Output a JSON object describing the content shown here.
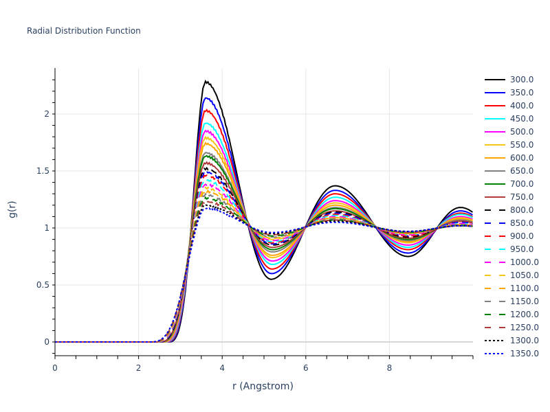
{
  "chart_data": {
    "type": "line",
    "title": "Radial Distribution Function",
    "xlabel": "r (Angstrom)",
    "ylabel": "g(r)",
    "xlim": [
      0,
      10
    ],
    "ylim": [
      -0.12,
      2.38
    ],
    "xticks": [
      0,
      2,
      4,
      6,
      8
    ],
    "yticks": [
      0,
      0.5,
      1,
      1.5,
      2
    ],
    "yticklabels": [
      "0",
      "0.5",
      "1",
      "1.5",
      "2"
    ],
    "grid": true,
    "legend_position": "right",
    "series": [
      {
        "name": "300.0",
        "color": "#000000",
        "dash": "solid",
        "first_peak": [
          3.6,
          2.28
        ],
        "first_min": [
          5.17,
          0.55
        ],
        "second_peak": [
          6.7,
          1.37
        ],
        "second_min": [
          8.45,
          0.75
        ],
        "third_peak": [
          9.7,
          1.18
        ],
        "onset_r": 2.7
      },
      {
        "name": "350.0",
        "color": "#0000ff",
        "dash": "solid",
        "first_peak": [
          3.6,
          2.14
        ],
        "first_min": [
          5.18,
          0.6
        ],
        "second_peak": [
          6.7,
          1.33
        ],
        "second_min": [
          8.45,
          0.78
        ],
        "third_peak": [
          9.7,
          1.15
        ],
        "onset_r": 2.67
      },
      {
        "name": "400.0",
        "color": "#ff0000",
        "dash": "solid",
        "first_peak": [
          3.6,
          2.03
        ],
        "first_min": [
          5.19,
          0.64
        ],
        "second_peak": [
          6.7,
          1.3
        ],
        "second_min": [
          8.45,
          0.81
        ],
        "third_peak": [
          9.7,
          1.13
        ],
        "onset_r": 2.64
      },
      {
        "name": "450.0",
        "color": "#00ffff",
        "dash": "solid",
        "first_peak": [
          3.6,
          1.92
        ],
        "first_min": [
          5.2,
          0.68
        ],
        "second_peak": [
          6.7,
          1.27
        ],
        "second_min": [
          8.45,
          0.83
        ],
        "third_peak": [
          9.7,
          1.12
        ],
        "onset_r": 2.61
      },
      {
        "name": "500.0",
        "color": "#ff00ff",
        "dash": "solid",
        "first_peak": [
          3.6,
          1.85
        ],
        "first_min": [
          5.2,
          0.71
        ],
        "second_peak": [
          6.7,
          1.24
        ],
        "second_min": [
          8.45,
          0.85
        ],
        "third_peak": [
          9.7,
          1.1
        ],
        "onset_r": 2.58
      },
      {
        "name": "550.0",
        "color": "#f5c518",
        "dash": "solid",
        "first_peak": [
          3.6,
          1.79
        ],
        "first_min": [
          5.2,
          0.74
        ],
        "second_peak": [
          6.7,
          1.22
        ],
        "second_min": [
          8.45,
          0.87
        ],
        "third_peak": [
          9.7,
          1.09
        ],
        "onset_r": 2.55
      },
      {
        "name": "600.0",
        "color": "#ffa500",
        "dash": "solid",
        "first_peak": [
          3.6,
          1.74
        ],
        "first_min": [
          5.2,
          0.76
        ],
        "second_peak": [
          6.7,
          1.2
        ],
        "second_min": [
          8.45,
          0.88
        ],
        "third_peak": [
          9.7,
          1.08
        ],
        "onset_r": 2.53
      },
      {
        "name": "650.0",
        "color": "#808080",
        "dash": "solid",
        "first_peak": [
          3.6,
          1.66
        ],
        "first_min": [
          5.2,
          0.79
        ],
        "second_peak": [
          6.7,
          1.18
        ],
        "second_min": [
          8.45,
          0.89
        ],
        "third_peak": [
          9.7,
          1.07
        ],
        "onset_r": 2.5
      },
      {
        "name": "700.0",
        "color": "#008000",
        "dash": "solid",
        "first_peak": [
          3.6,
          1.63
        ],
        "first_min": [
          5.2,
          0.81
        ],
        "second_peak": [
          6.7,
          1.17
        ],
        "second_min": [
          8.45,
          0.9
        ],
        "third_peak": [
          9.7,
          1.06
        ],
        "onset_r": 2.48
      },
      {
        "name": "750.0",
        "color": "#b03a3a",
        "dash": "solid",
        "first_peak": [
          3.6,
          1.57
        ],
        "first_min": [
          5.2,
          0.83
        ],
        "second_peak": [
          6.7,
          1.15
        ],
        "second_min": [
          8.45,
          0.91
        ],
        "third_peak": [
          9.7,
          1.06
        ],
        "onset_r": 2.46
      },
      {
        "name": "800.0",
        "color": "#000000",
        "dash": "dash",
        "first_peak": [
          3.6,
          1.52
        ],
        "first_min": [
          5.2,
          0.85
        ],
        "second_peak": [
          6.7,
          1.14
        ],
        "second_min": [
          8.45,
          0.92
        ],
        "third_peak": [
          9.7,
          1.05
        ],
        "onset_r": 2.44
      },
      {
        "name": "850.0",
        "color": "#0000ff",
        "dash": "dash",
        "first_peak": [
          3.6,
          1.49
        ],
        "first_min": [
          5.2,
          0.86
        ],
        "second_peak": [
          6.7,
          1.13
        ],
        "second_min": [
          8.45,
          0.93
        ],
        "third_peak": [
          9.7,
          1.05
        ],
        "onset_r": 2.42
      },
      {
        "name": "900.0",
        "color": "#ff0000",
        "dash": "dash",
        "first_peak": [
          3.6,
          1.46
        ],
        "first_min": [
          5.2,
          0.87
        ],
        "second_peak": [
          6.7,
          1.12
        ],
        "second_min": [
          8.45,
          0.93
        ],
        "third_peak": [
          9.7,
          1.04
        ],
        "onset_r": 2.4
      },
      {
        "name": "950.0",
        "color": "#00ffff",
        "dash": "dash",
        "first_peak": [
          3.6,
          1.42
        ],
        "first_min": [
          5.2,
          0.88
        ],
        "second_peak": [
          6.7,
          1.11
        ],
        "second_min": [
          8.45,
          0.94
        ],
        "third_peak": [
          9.7,
          1.04
        ],
        "onset_r": 2.38
      },
      {
        "name": "1000.0",
        "color": "#ff00ff",
        "dash": "dash",
        "first_peak": [
          3.6,
          1.38
        ],
        "first_min": [
          5.2,
          0.89
        ],
        "second_peak": [
          6.7,
          1.1
        ],
        "second_min": [
          8.45,
          0.94
        ],
        "third_peak": [
          9.7,
          1.04
        ],
        "onset_r": 2.36
      },
      {
        "name": "1050.0",
        "color": "#f5c518",
        "dash": "dash",
        "first_peak": [
          3.6,
          1.35
        ],
        "first_min": [
          5.2,
          0.9
        ],
        "second_peak": [
          6.7,
          1.09
        ],
        "second_min": [
          8.45,
          0.95
        ],
        "third_peak": [
          9.7,
          1.03
        ],
        "onset_r": 2.34
      },
      {
        "name": "1100.0",
        "color": "#ffa500",
        "dash": "dash",
        "first_peak": [
          3.6,
          1.32
        ],
        "first_min": [
          5.2,
          0.91
        ],
        "second_peak": [
          6.7,
          1.09
        ],
        "second_min": [
          8.45,
          0.95
        ],
        "third_peak": [
          9.7,
          1.03
        ],
        "onset_r": 2.32
      },
      {
        "name": "1150.0",
        "color": "#808080",
        "dash": "dash",
        "first_peak": [
          3.6,
          1.29
        ],
        "first_min": [
          5.2,
          0.92
        ],
        "second_peak": [
          6.7,
          1.08
        ],
        "second_min": [
          8.45,
          0.96
        ],
        "third_peak": [
          9.7,
          1.03
        ],
        "onset_r": 2.3
      },
      {
        "name": "1200.0",
        "color": "#008000",
        "dash": "dash",
        "first_peak": [
          3.6,
          1.26
        ],
        "first_min": [
          5.2,
          0.93
        ],
        "second_peak": [
          6.7,
          1.07
        ],
        "second_min": [
          8.45,
          0.96
        ],
        "third_peak": [
          9.7,
          1.02
        ],
        "onset_r": 2.28
      },
      {
        "name": "1250.0",
        "color": "#b03a3a",
        "dash": "dash",
        "first_peak": [
          3.6,
          1.23
        ],
        "first_min": [
          5.2,
          0.94
        ],
        "second_peak": [
          6.7,
          1.07
        ],
        "second_min": [
          8.45,
          0.96
        ],
        "third_peak": [
          9.7,
          1.02
        ],
        "onset_r": 2.27
      },
      {
        "name": "1300.0",
        "color": "#000000",
        "dash": "dot",
        "first_peak": [
          3.6,
          1.2
        ],
        "first_min": [
          5.2,
          0.95
        ],
        "second_peak": [
          6.7,
          1.06
        ],
        "second_min": [
          8.45,
          0.97
        ],
        "third_peak": [
          9.7,
          1.02
        ],
        "onset_r": 2.25
      },
      {
        "name": "1350.0",
        "color": "#0000ff",
        "dash": "dot",
        "first_peak": [
          3.6,
          1.17
        ],
        "first_min": [
          5.2,
          0.96
        ],
        "second_peak": [
          6.7,
          1.05
        ],
        "second_min": [
          8.45,
          0.97
        ],
        "third_peak": [
          9.7,
          1.02
        ],
        "onset_r": 2.24
      }
    ]
  },
  "page": {
    "title": "Radial Distribution Function",
    "xlabel": "r (Angstrom)",
    "ylabel": "g(r)"
  }
}
